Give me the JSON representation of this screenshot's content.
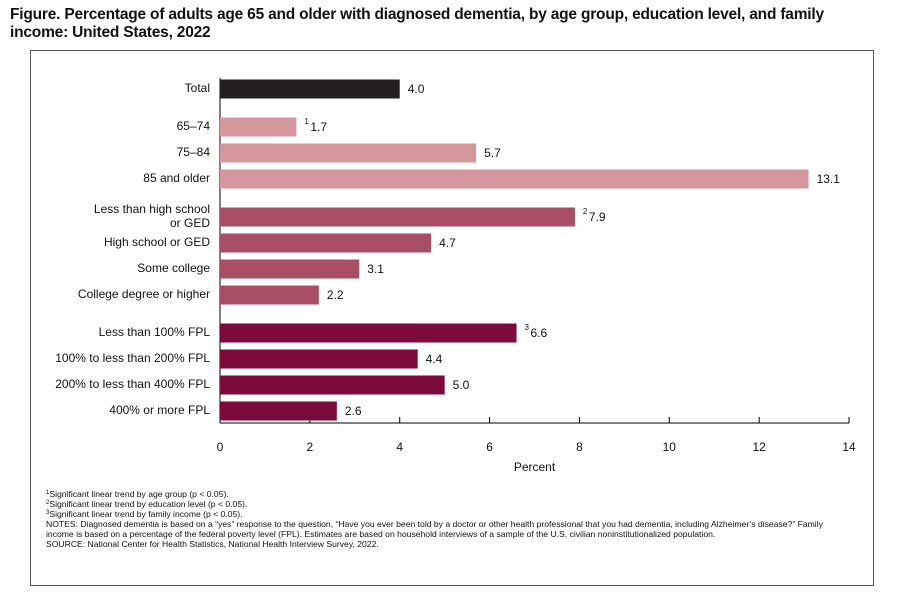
{
  "chart_data": {
    "type": "grouped-hbar",
    "title": "Figure. Percentage of adults age 65 and older with diagnosed dementia, by age group, education level, and family income: United States, 2022",
    "groups": [
      {
        "categories": [
          "Total"
        ],
        "values": [
          4
        ],
        "value_labels": [
          "4.0"
        ],
        "footnote_marks": [
          null
        ],
        "color": "#231f20"
      },
      {
        "categories": [
          "65–74",
          "75–84",
          "85 and older"
        ],
        "values": [
          1.7,
          5.7,
          13.1
        ],
        "value_labels": [
          "1.7",
          "5.7",
          "13.1"
        ],
        "footnote_marks": [
          "1",
          null,
          null
        ],
        "color": "#d4979d"
      },
      {
        "categories": [
          "Less than high school\nor GED",
          "High school or GED",
          "Some college",
          "College degree or higher"
        ],
        "values": [
          7.9,
          4.7,
          3.1,
          2.2
        ],
        "value_labels": [
          "7.9",
          "4.7",
          "3.1",
          "2.2"
        ],
        "footnote_marks": [
          "2",
          null,
          null,
          null
        ],
        "color": "#a84f65"
      },
      {
        "categories": [
          "Less than 100% FPL",
          "100% to less than 200% FPL",
          "200% to less than 400% FPL",
          "400% or more FPL"
        ],
        "values": [
          6.6,
          4.4,
          5,
          2.6
        ],
        "value_labels": [
          "6.6",
          "4.4",
          "5.0",
          "2.6"
        ],
        "footnote_marks": [
          "3",
          null,
          null,
          null
        ],
        "color": "#7c0a3b"
      }
    ],
    "xlabel": "Percent",
    "xlim": [
      0,
      14
    ],
    "xticks": [
      0,
      2,
      4,
      6,
      8,
      10,
      12,
      14
    ],
    "grid": false,
    "footnotes": [
      {
        "mark": "1",
        "text": "Significant linear trend by age group (p < 0.05)."
      },
      {
        "mark": "2",
        "text": "Significant linear trend by education level (p < 0.05)."
      },
      {
        "mark": "3",
        "text": "Significant linear trend by family income (p < 0.05)."
      }
    ],
    "notes": "NOTES: Diagnosed dementia is based on a “yes” response to the question, “Have you ever been told by a doctor or other health professional that you had dementia, including Alzheimer’s disease?” Family income is based on a percentage of the federal poverty level (FPL). Estimates are based on household interviews of a sample of the U.S. civilian noninstitutionalized population.",
    "source": "SOURCE: National Center for Health Statistics, National Health Interview Survey, 2022."
  }
}
